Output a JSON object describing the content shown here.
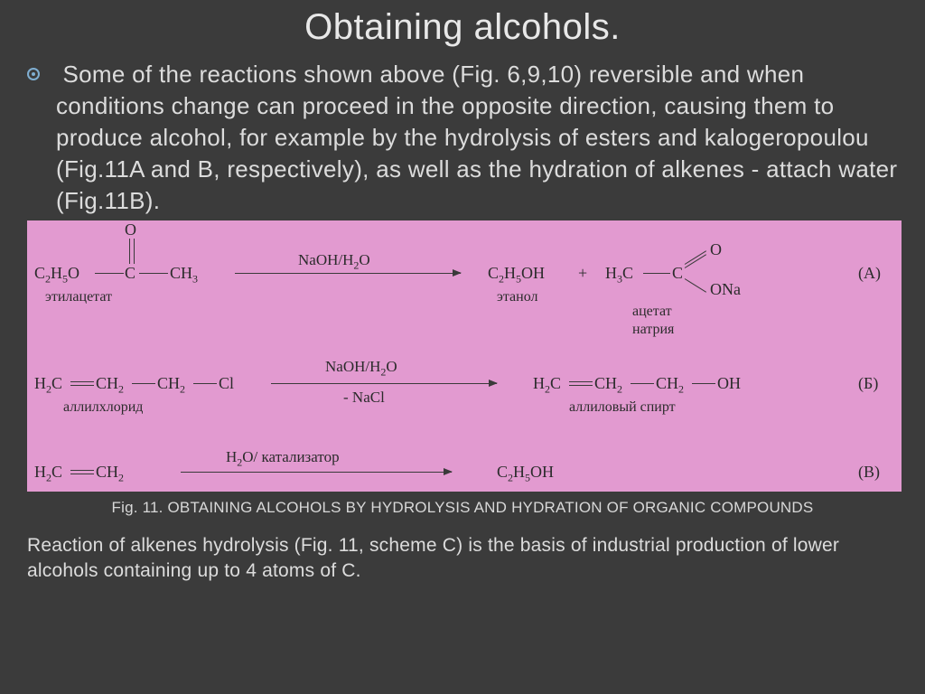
{
  "title": "Obtaining alcohols.",
  "body": "Some of the reactions shown above (Fig. 6,9,10) reversible and when conditions change can proceed in the opposite direction, causing them to produce alcohol, for example by the hydrolysis of esters and kalogeropoulou (Fig.11A and B, respectively), as well as the hydration of alkenes - attach water (Fig.11B).",
  "caption": "Fig. 11. OBTAINING ALCOHOLS BY HYDROLYSIS AND HYDRATION OF ORGANIC COMPOUNDS",
  "footer": "Reaction of alkenes hydrolysis (Fig. 11, scheme C) is the basis of industrial production of lower alcohols containing up to 4 atoms of C.",
  "diagram": {
    "bg": "#e29ad0",
    "reactionA": {
      "reagent": "NaOH/H₂O",
      "left_formula_parts": [
        "C",
        "2",
        "H",
        "5",
        "O"
      ],
      "left_tail": "CH",
      "left_tail_sub": "3",
      "left_label": "этилацетат",
      "o_top": "O",
      "prod1_parts": [
        "C",
        "2",
        "H",
        "5",
        "OH"
      ],
      "prod1_label": "этанол",
      "plus": "+",
      "prod2_head_parts": [
        "H",
        "3",
        "C"
      ],
      "prod2_o": "O",
      "prod2_ona": "ONa",
      "prod2_label1": "ацетат",
      "prod2_label2": "натрия",
      "tag": "(A)"
    },
    "reactionB": {
      "reagent1": "NaOH/H₂O",
      "reagent2": "- NaCl",
      "left_parts": [
        "H",
        "2",
        "C",
        "CH",
        "2",
        "CH",
        "2",
        "Cl"
      ],
      "left_label": "аллилхлорид",
      "right_parts": [
        "H",
        "2",
        "C",
        "CH",
        "2",
        "CH",
        "2",
        "OH"
      ],
      "right_label": "аллиловый спирт",
      "tag": "(Б)"
    },
    "reactionC": {
      "reagent": "H₂O/ катализатор",
      "left_parts": [
        "H",
        "2",
        "C",
        "CH",
        "2"
      ],
      "right_parts": [
        "C",
        "2",
        "H",
        "5",
        "OH"
      ],
      "tag": "(В)"
    }
  }
}
